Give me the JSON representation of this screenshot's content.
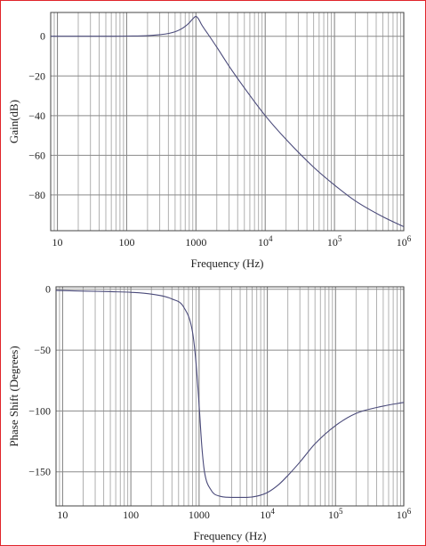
{
  "chart_data": [
    {
      "type": "line",
      "xlabel": "Frequency (Hz)",
      "ylabel": "Gain(dB)",
      "x_scale": "log",
      "xlim": [
        8,
        1000000
      ],
      "ylim": [
        -98,
        12
      ],
      "grid": true,
      "x_tick_labels": [
        "10",
        "100",
        "1000",
        "10^4",
        "10^5",
        "10^6"
      ],
      "y_tick_labels": [
        "0",
        "-20",
        "-40",
        "-60",
        "-80"
      ],
      "series": [
        {
          "x": [
            8,
            20,
            50,
            100,
            200,
            300,
            400,
            500,
            600,
            700,
            800,
            900,
            1000,
            1100,
            1200,
            1500,
            2000,
            3000,
            5000,
            10000,
            20000,
            50000,
            100000,
            200000,
            500000,
            1000000
          ],
          "y": [
            0,
            0,
            0,
            0.1,
            0.3,
            0.8,
            1.4,
            2.3,
            3.5,
            5,
            6.8,
            8.8,
            10,
            8.5,
            6,
            1,
            -5.5,
            -15,
            -26,
            -40,
            -52,
            -66,
            -75,
            -83,
            -91,
            -96
          ]
        }
      ]
    },
    {
      "type": "line",
      "xlabel": "Frequency (Hz)",
      "ylabel": "Phase Shift (Degrees)",
      "x_scale": "log",
      "xlim": [
        8,
        1000000
      ],
      "ylim": [
        -178,
        2
      ],
      "grid": true,
      "x_tick_labels": [
        "10",
        "100",
        "1000",
        "10^4",
        "10^5",
        "10^6"
      ],
      "y_tick_labels": [
        "0",
        "-50",
        "-100",
        "-150"
      ],
      "series": [
        {
          "x": [
            8,
            20,
            50,
            100,
            200,
            400,
            600,
            800,
            900,
            1000,
            1100,
            1200,
            1500,
            2000,
            3000,
            5000,
            7000,
            10000,
            15000,
            20000,
            30000,
            50000,
            100000,
            200000,
            500000,
            1000000
          ],
          "y": [
            -1,
            -1.5,
            -2,
            -2.5,
            -4,
            -8,
            -15,
            -35,
            -60,
            -95,
            -130,
            -150,
            -165,
            -170,
            -171,
            -171,
            -170,
            -167,
            -160,
            -153,
            -142,
            -127,
            -112,
            -102,
            -96,
            -93
          ]
        }
      ]
    }
  ]
}
